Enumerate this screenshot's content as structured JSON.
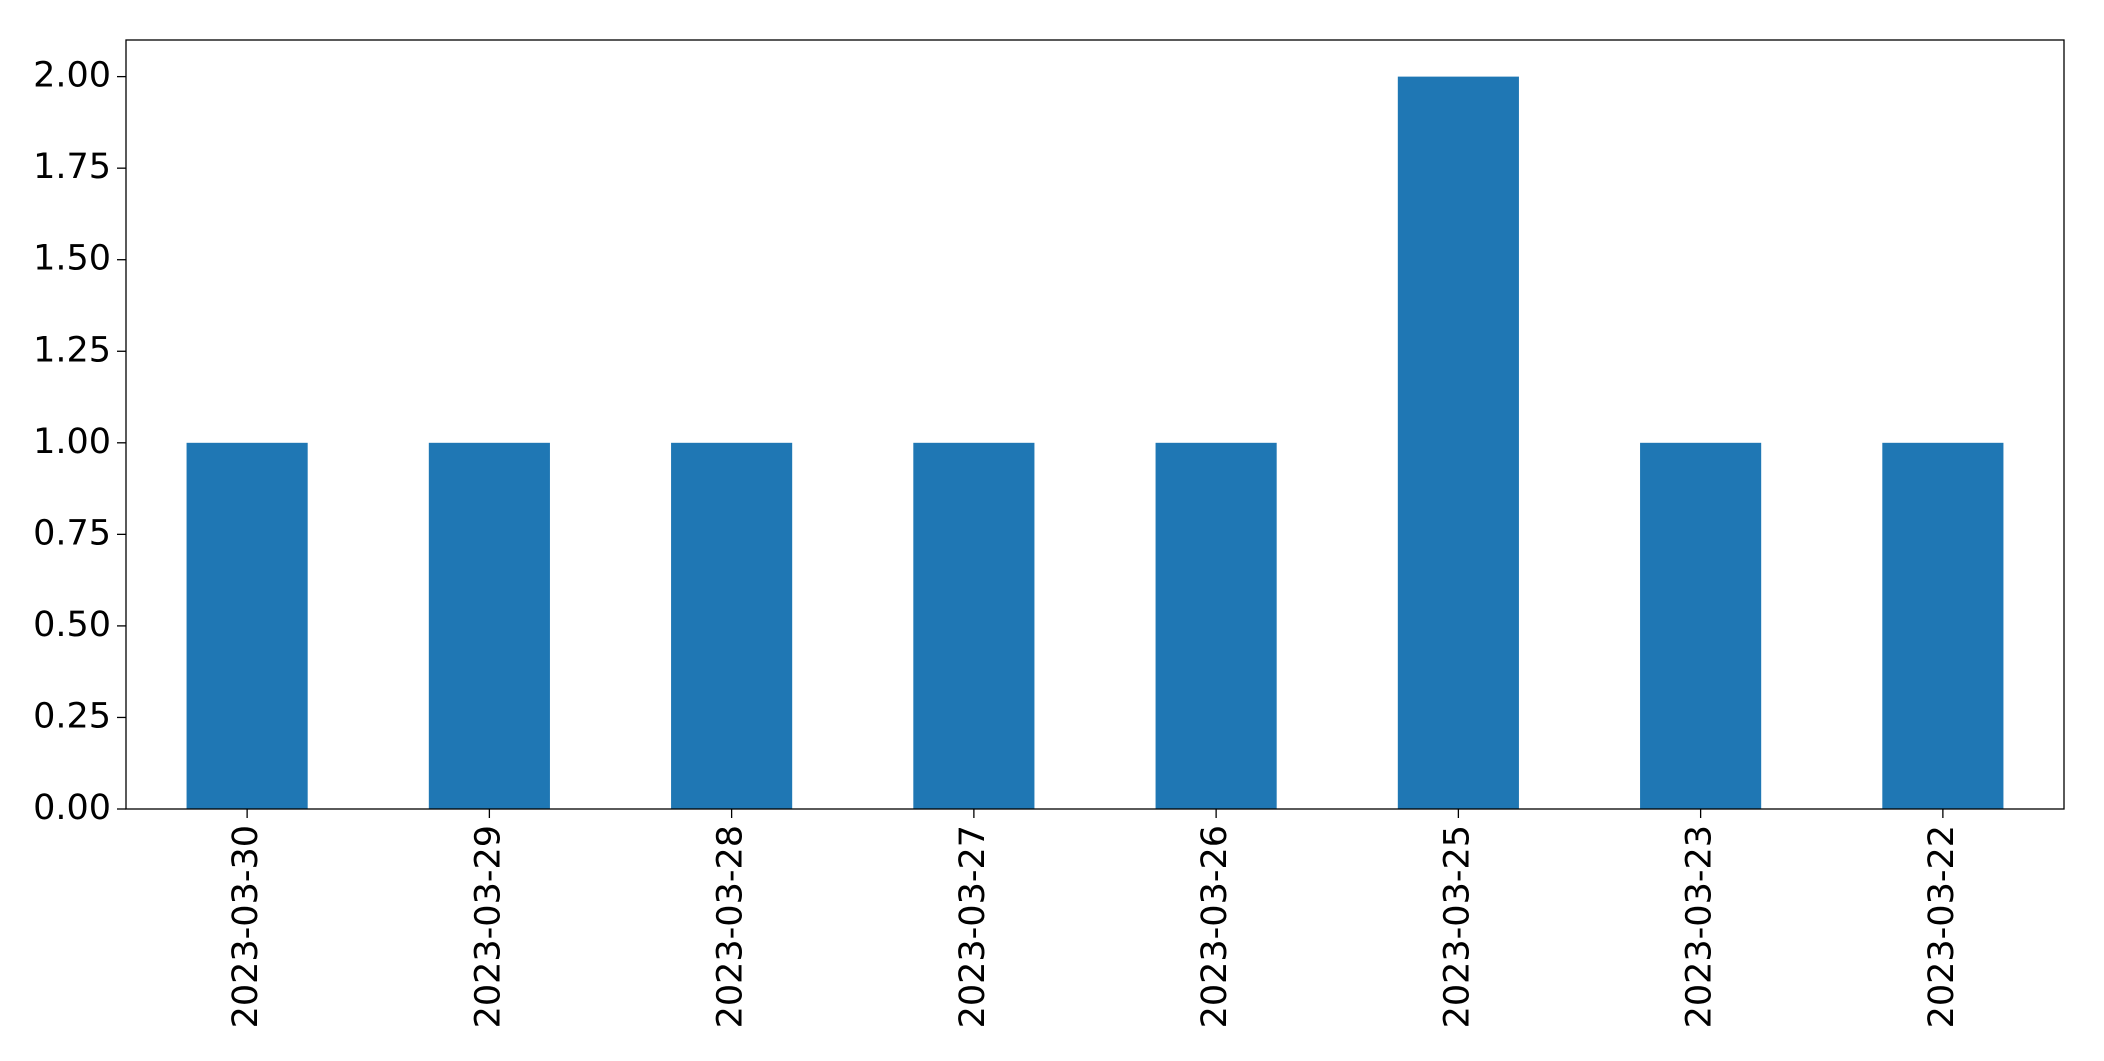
{
  "chart_data": {
    "type": "bar",
    "categories": [
      "2023-03-30",
      "2023-03-29",
      "2023-03-28",
      "2023-03-27",
      "2023-03-26",
      "2023-03-25",
      "2023-03-23",
      "2023-03-22"
    ],
    "values": [
      1,
      1,
      1,
      1,
      1,
      2,
      1,
      1
    ],
    "color": "#1f77b4",
    "ylim": [
      0,
      2.1
    ],
    "yticks": [
      {
        "value": 0,
        "label": "0.00"
      },
      0.25,
      {
        "value": 0.5,
        "label": "0.50"
      },
      0.75,
      {
        "value": 1,
        "label": "1.00"
      },
      1.25,
      {
        "value": 1.5,
        "label": "1.50"
      },
      1.75,
      {
        "value": 2,
        "label": "2.00"
      }
    ],
    "grid": false
  }
}
